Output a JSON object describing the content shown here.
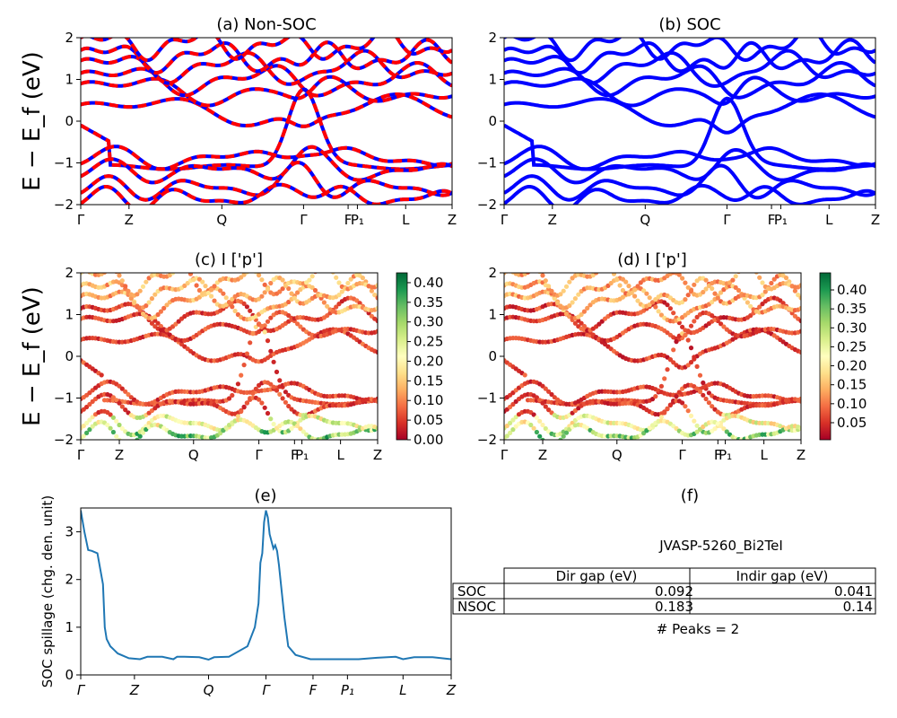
{
  "chart_data": [
    {
      "id": "a",
      "type": "line",
      "title": "(a) Non-SOC",
      "ylabel": "E − E_f (eV)",
      "ylim": [
        -2,
        2
      ],
      "yticks": [
        "2",
        "1",
        "0",
        "−1",
        "−2"
      ],
      "kpoints": [
        "Γ",
        "Z",
        "Q",
        "Γ",
        "F",
        "P₁",
        "L",
        "Z"
      ],
      "kpos": [
        0,
        0.13,
        0.38,
        0.6,
        0.72,
        0.745,
        0.875,
        1.0
      ],
      "series": [
        {
          "color": "#0000ff",
          "style": "solid"
        },
        {
          "color": "#ff0000",
          "style": "dashed"
        }
      ]
    },
    {
      "id": "b",
      "type": "line",
      "title": "(b) SOC",
      "ylim": [
        -2,
        2
      ],
      "yticks": [
        "2",
        "1",
        "0",
        "−1",
        "−2"
      ],
      "kpoints": [
        "Γ",
        "Z",
        "Q",
        "Γ",
        "F",
        "P₁",
        "L",
        "Z"
      ],
      "kpos": [
        0,
        0.13,
        0.38,
        0.6,
        0.72,
        0.745,
        0.875,
        1.0
      ],
      "series": [
        {
          "color": "#0000ff"
        }
      ]
    },
    {
      "id": "c",
      "type": "scatter",
      "title": "(c)  I ['p']",
      "ylabel": "E − E_f (eV)",
      "ylim": [
        -2,
        2
      ],
      "yticks": [
        "2",
        "1",
        "0",
        "−1",
        "−2"
      ],
      "kpoints": [
        "Γ",
        "Z",
        "Q",
        "Γ",
        "F",
        "P₁",
        "L",
        "Z"
      ],
      "kpos": [
        0,
        0.13,
        0.38,
        0.6,
        0.72,
        0.745,
        0.875,
        1.0
      ],
      "colorbar": {
        "range": [
          0.0,
          0.425
        ],
        "ticks": [
          "0.40",
          "0.35",
          "0.30",
          "0.25",
          "0.20",
          "0.15",
          "0.10",
          "0.05",
          "0.00"
        ],
        "tickvals": [
          0.4,
          0.35,
          0.3,
          0.25,
          0.2,
          0.15,
          0.1,
          0.05,
          0.0
        ],
        "colormap": [
          "#a50026",
          "#d73027",
          "#f46d43",
          "#fdae61",
          "#fee08b",
          "#ffffbf",
          "#d9ef8b",
          "#a6d96a",
          "#66bd63",
          "#1a9850",
          "#006837"
        ]
      }
    },
    {
      "id": "d",
      "type": "scatter",
      "title": "(d) I ['p']",
      "ylim": [
        -2,
        2
      ],
      "yticks": [
        "2",
        "1",
        "0",
        "−1",
        "−2"
      ],
      "kpoints": [
        "Γ",
        "Z",
        "Q",
        "Γ",
        "F",
        "P₁",
        "L",
        "Z"
      ],
      "kpos": [
        0,
        0.13,
        0.38,
        0.6,
        0.72,
        0.745,
        0.875,
        1.0
      ],
      "colorbar": {
        "range": [
          0.005,
          0.445
        ],
        "ticks": [
          "0.40",
          "0.35",
          "0.30",
          "0.25",
          "0.20",
          "0.15",
          "0.10",
          "0.05"
        ],
        "tickvals": [
          0.4,
          0.35,
          0.3,
          0.25,
          0.2,
          0.15,
          0.1,
          0.05
        ],
        "colormap": [
          "#a50026",
          "#d73027",
          "#f46d43",
          "#fdae61",
          "#fee08b",
          "#ffffbf",
          "#d9ef8b",
          "#a6d96a",
          "#66bd63",
          "#1a9850",
          "#006837"
        ]
      }
    },
    {
      "id": "e",
      "type": "line",
      "title": "(e)",
      "ylabel": "SOC spillage (chg. den. unit)",
      "ylim": [
        0,
        3.5
      ],
      "yticks": [
        "3",
        "2",
        "1",
        "0"
      ],
      "ytickvals": [
        3,
        2,
        1,
        0
      ],
      "kpoints": [
        "Γ",
        "Z",
        "Q",
        "Γ",
        "F",
        "P₁",
        "L",
        "Z"
      ],
      "kpos": [
        0,
        0.145,
        0.345,
        0.5,
        0.627,
        0.72,
        0.87,
        1.0
      ],
      "x": [
        0,
        0.01,
        0.02,
        0.03,
        0.045,
        0.06,
        0.065,
        0.07,
        0.08,
        0.1,
        0.13,
        0.16,
        0.18,
        0.22,
        0.25,
        0.26,
        0.28,
        0.32,
        0.345,
        0.36,
        0.4,
        0.45,
        0.47,
        0.48,
        0.485,
        0.49,
        0.495,
        0.5,
        0.505,
        0.51,
        0.52,
        0.525,
        0.53,
        0.535,
        0.55,
        0.56,
        0.58,
        0.62,
        0.7,
        0.75,
        0.8,
        0.85,
        0.87,
        0.9,
        0.95,
        1.0
      ],
      "y": [
        3.45,
        3.0,
        2.62,
        2.6,
        2.55,
        1.9,
        1.0,
        0.75,
        0.6,
        0.45,
        0.35,
        0.33,
        0.38,
        0.38,
        0.33,
        0.38,
        0.38,
        0.37,
        0.32,
        0.37,
        0.38,
        0.6,
        1.0,
        1.5,
        2.35,
        2.55,
        3.2,
        3.45,
        3.3,
        2.95,
        2.65,
        2.72,
        2.6,
        2.3,
        1.2,
        0.6,
        0.42,
        0.33,
        0.33,
        0.33,
        0.36,
        0.38,
        0.33,
        0.37,
        0.37,
        0.33
      ],
      "color": "#1f77b4"
    }
  ],
  "panel_f": {
    "title": "(f)",
    "subtitle": "JVASP-5260_Bi2TeI",
    "columns": [
      "Dir gap (eV)",
      "Indir gap (eV)"
    ],
    "rows": [
      {
        "label": "SOC",
        "dir": "0.092",
        "indir": "0.041"
      },
      {
        "label": "NSOC",
        "dir": "0.183",
        "indir": "0.14"
      }
    ],
    "peaks": "# Peaks = 2"
  }
}
